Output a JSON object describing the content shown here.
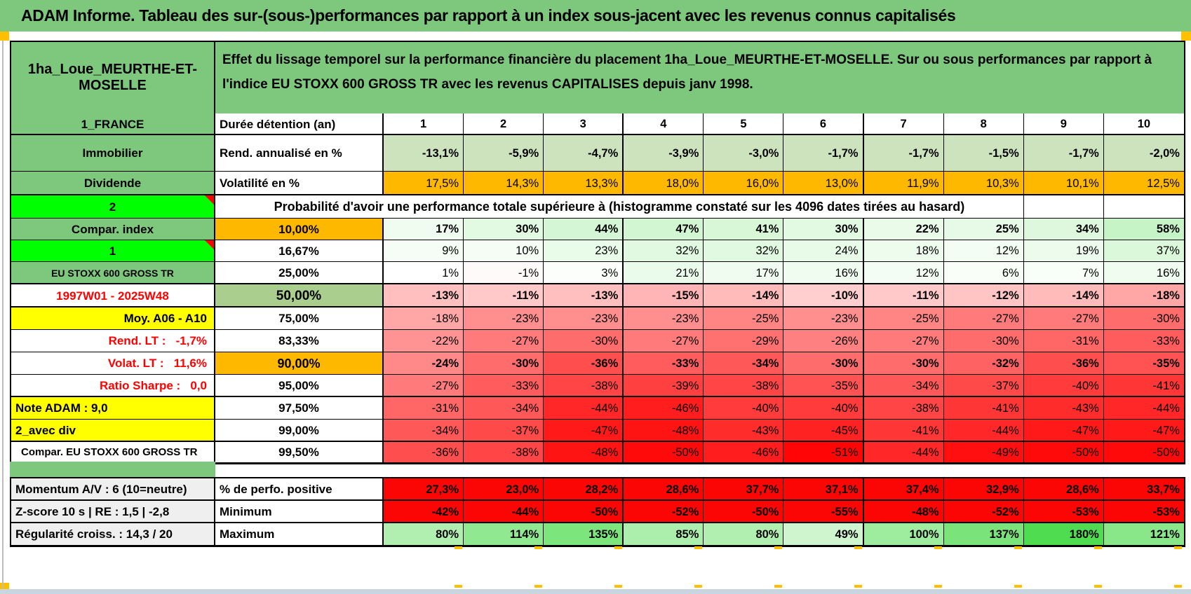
{
  "title": "ADAM Informe. Tableau des sur-(sous-)performances par rapport à un index sous-jacent avec les revenus connus capitalisés",
  "header": {
    "product": "1ha_Loue_MEURTHE-ET-MOSELLE",
    "description": "Effet du lissage temporel sur la performance financière du placement 1ha_Loue_MEURTHE-ET-MOSELLE. Sur ou sous performances par rapport à l'indice EU STOXX 600 GROSS TR avec les revenus CAPITALISES depuis janv 1998."
  },
  "colors": {
    "band_green": "#7EC87E",
    "bright_green": "#00FF00",
    "orange": "#FFB800",
    "yellow": "#FFFF00",
    "sage": "#A9CE8E",
    "rend_green": "#CDE3BE",
    "label_gray": "#EFEFEF",
    "full_red": "#FB0505",
    "marker_orange": "#FFC000",
    "red_text": "#FF0000"
  },
  "table": {
    "rows": [
      {
        "id": "duration",
        "label": {
          "text": "1_FRANCE",
          "bg": "#7EC87E",
          "align": "center"
        },
        "metric": {
          "text": "Durée détention (an)",
          "align": "left"
        },
        "cells": [
          "1",
          "2",
          "3",
          "4",
          "5",
          "6",
          "7",
          "8",
          "9",
          "10"
        ],
        "cellBgAll": "#FFFFFF",
        "bold": true,
        "cellAlign": "center"
      },
      {
        "id": "rend",
        "label": {
          "text": "Immobilier",
          "bg": "#7EC87E",
          "align": "center"
        },
        "metric": {
          "text": "Rend. annualisé en %",
          "align": "left"
        },
        "cells": [
          "-13,1%",
          "-5,9%",
          "-4,7%",
          "-3,9%",
          "-3,0%",
          "-1,7%",
          "-1,7%",
          "-1,5%",
          "-1,7%",
          "-2,0%"
        ],
        "cellBgAll": "#CDE3BE",
        "bold": true
      },
      {
        "id": "volat",
        "label": {
          "text": "Dividende",
          "bg": "#7EC87E",
          "align": "center"
        },
        "metric": {
          "text": "Volatilité en %",
          "align": "left"
        },
        "cells": [
          "17,5%",
          "14,3%",
          "13,3%",
          "18,0%",
          "16,0%",
          "13,0%",
          "11,9%",
          "10,3%",
          "10,1%",
          "12,5%"
        ],
        "cellBgAll": "#FFB800",
        "bold": false
      },
      {
        "id": "prob",
        "label": {
          "text": "2",
          "bg": "#00FF00",
          "align": "center",
          "triangle": true
        },
        "span_text": "Probabilité d'avoir une performance totale supérieure à (histogramme constaté sur les 4096 dates tirées au hasard)",
        "span_cols": 9,
        "trailing_empty": 2
      },
      {
        "id": "p10",
        "label": {
          "text": "Compar. index",
          "bg": "#7EC87E",
          "align": "center"
        },
        "metric": {
          "text": "10,00%",
          "bg": "#FFB800",
          "align": "center"
        },
        "cells": [
          "17%",
          "30%",
          "44%",
          "47%",
          "41%",
          "30%",
          "22%",
          "25%",
          "34%",
          "58%"
        ],
        "cellBg": [
          "#EFFCEF",
          "#E2F9E2",
          "#D4F6D4",
          "#D1F6D1",
          "#D7F7D7",
          "#E2F9E2",
          "#EAFBEA",
          "#E7FAE7",
          "#DEF8DE",
          "#C7F4C7"
        ],
        "bold": true
      },
      {
        "id": "p1667",
        "label": {
          "text": "1",
          "bg": "#00FF00",
          "align": "center",
          "triangle": true
        },
        "metric": {
          "text": "16,67%",
          "align": "center"
        },
        "cells": [
          "9%",
          "10%",
          "23%",
          "32%",
          "32%",
          "24%",
          "18%",
          "12%",
          "19%",
          "37%"
        ],
        "cellBg": [
          "#F6FDF6",
          "#F5FDF5",
          "#E9FBE9",
          "#E0F9E0",
          "#E0F9E0",
          "#E8FAE8",
          "#EEFCEE",
          "#F3FDF3",
          "#EDFBED",
          "#DBF8DB"
        ],
        "bold": false
      },
      {
        "id": "p25",
        "label": {
          "text": "EU STOXX 600 GROSS TR",
          "bg": "#7EC87E",
          "align": "center",
          "fontSize": 14
        },
        "metric": {
          "text": "25,00%",
          "align": "center"
        },
        "cells": [
          "1%",
          "-1%",
          "3%",
          "21%",
          "17%",
          "16%",
          "12%",
          "6%",
          "7%",
          "16%"
        ],
        "cellBg": [
          "#FEFFFE",
          "#FFFAFA",
          "#FCFEFC",
          "#EBFBEB",
          "#EFFCEF",
          "#F0FCF0",
          "#F3FDF3",
          "#F9FEF9",
          "#F8FEF8",
          "#F0FCF0"
        ],
        "bold": false
      },
      {
        "id": "p50",
        "label": {
          "text": "1997W01 - 2025W48",
          "bg": "#FFFFFF",
          "align": "center",
          "color": "#FF0000"
        },
        "metric": {
          "text": "50,00%",
          "bg": "#A9CE8E",
          "align": "center",
          "fontSize": 19
        },
        "cells": [
          "-13%",
          "-11%",
          "-13%",
          "-15%",
          "-14%",
          "-10%",
          "-11%",
          "-12%",
          "-14%",
          "-18%"
        ],
        "cellBg": [
          "#FFBFBF",
          "#FFC9C9",
          "#FFBFBF",
          "#FFB5B5",
          "#FFBABA",
          "#FFCECE",
          "#FFC9C9",
          "#FFC4C4",
          "#FFBABA",
          "#FFA7A7"
        ],
        "bold": true
      },
      {
        "id": "p75",
        "label": {
          "text": "Moy. A06 - A10",
          "bg": "#FFFF00",
          "align": "right"
        },
        "metric": {
          "text": "75,00%",
          "align": "center"
        },
        "cells": [
          "-18%",
          "-23%",
          "-23%",
          "-23%",
          "-25%",
          "-23%",
          "-25%",
          "-27%",
          "-27%",
          "-30%"
        ],
        "cellBg": [
          "#FFA7A7",
          "#FF8E8E",
          "#FF8E8E",
          "#FF8E8E",
          "#FF8484",
          "#FF8E8E",
          "#FF8484",
          "#FF7B7B",
          "#FF7B7B",
          "#FF6C6C"
        ],
        "bold": false
      },
      {
        "id": "p8333",
        "label": {
          "text": "Rend. LT :   -1,7%",
          "bg": "#FFFFFF",
          "align": "right",
          "color": "#FF0000"
        },
        "metric": {
          "text": "83,33%",
          "align": "center"
        },
        "cells": [
          "-22%",
          "-27%",
          "-30%",
          "-27%",
          "-29%",
          "-26%",
          "-27%",
          "-30%",
          "-31%",
          "-33%"
        ],
        "cellBg": [
          "#FF9393",
          "#FF7B7B",
          "#FF6C6C",
          "#FF7B7B",
          "#FF7171",
          "#FF8080",
          "#FF7B7B",
          "#FF6C6C",
          "#FF6767",
          "#FF5D5D"
        ],
        "bold": false
      },
      {
        "id": "p90",
        "label": {
          "text": "Volat. LT :   11,6%",
          "bg": "#FFFFFF",
          "align": "right",
          "color": "#FF0000"
        },
        "metric": {
          "text": "90,00%",
          "bg": "#FFB800",
          "align": "center",
          "fontSize": 18
        },
        "cells": [
          "-24%",
          "-30%",
          "-36%",
          "-33%",
          "-34%",
          "-30%",
          "-30%",
          "-32%",
          "-36%",
          "-35%"
        ],
        "cellBg": [
          "#FF8989",
          "#FF6C6C",
          "#FF4E4E",
          "#FF5D5D",
          "#FF5858",
          "#FF6C6C",
          "#FF6C6C",
          "#FF6262",
          "#FF4E4E",
          "#FF5353"
        ],
        "bold": true
      },
      {
        "id": "p95",
        "label": {
          "text": "Ratio Sharpe :   0,0",
          "bg": "#FFFFFF",
          "align": "right",
          "color": "#FF0000"
        },
        "metric": {
          "text": "95,00%",
          "align": "center"
        },
        "cells": [
          "-27%",
          "-33%",
          "-38%",
          "-39%",
          "-38%",
          "-35%",
          "-34%",
          "-37%",
          "-40%",
          "-41%"
        ],
        "cellBg": [
          "#FF7B7B",
          "#FF5D5D",
          "#FF4545",
          "#FF4040",
          "#FF4545",
          "#FF5353",
          "#FF5858",
          "#FF4A4A",
          "#FF3B3B",
          "#FF3636"
        ],
        "bold": false
      },
      {
        "id": "p975",
        "label": {
          "text": "Note ADAM : 9,0",
          "bg": "#FFFF00",
          "align": "left"
        },
        "metric": {
          "text": "97,50%",
          "align": "center"
        },
        "cells": [
          "-31%",
          "-34%",
          "-44%",
          "-46%",
          "-40%",
          "-40%",
          "-38%",
          "-41%",
          "-43%",
          "-44%"
        ],
        "cellBg": [
          "#FF6767",
          "#FF5858",
          "#FF2727",
          "#FF1D1D",
          "#FF3B3B",
          "#FF3B3B",
          "#FF4545",
          "#FF3636",
          "#FF2C2C",
          "#FF2727"
        ],
        "bold": false
      },
      {
        "id": "p99",
        "label": {
          "text": "2_avec div",
          "bg": "#FFFF00",
          "align": "left"
        },
        "metric": {
          "text": "99,00%",
          "align": "center"
        },
        "cells": [
          "-34%",
          "-37%",
          "-47%",
          "-48%",
          "-43%",
          "-45%",
          "-41%",
          "-44%",
          "-47%",
          "-47%"
        ],
        "cellBg": [
          "#FF5858",
          "#FF4A4A",
          "#FF1919",
          "#FF1414",
          "#FF2C2C",
          "#FF2222",
          "#FF3636",
          "#FF2727",
          "#FF1919",
          "#FF1919"
        ],
        "bold": false
      },
      {
        "id": "p995",
        "label": {
          "text": "Compar. EU STOXX 600 GROSS TR",
          "bg": "#FFFFFF",
          "align": "left",
          "fontSize": 15,
          "indent": 14
        },
        "metric": {
          "text": "99,50%",
          "align": "center"
        },
        "cells": [
          "-36%",
          "-38%",
          "-48%",
          "-50%",
          "-46%",
          "-51%",
          "-44%",
          "-49%",
          "-50%",
          "-50%"
        ],
        "cellBg": [
          "#FF4E4E",
          "#FF4545",
          "#FF1414",
          "#FF0A0A",
          "#FF1D1D",
          "#FF0505",
          "#FF2727",
          "#FF0F0F",
          "#FF0A0A",
          "#FF0A0A"
        ],
        "bold": false
      }
    ],
    "footer_rows": [
      {
        "id": "fpos",
        "label": {
          "text": "Momentum A/V : 6 (10=neutre)",
          "bg": "#EFEFEF",
          "align": "left"
        },
        "metric": {
          "text": "% de perfo. positive",
          "align": "left"
        },
        "cells": [
          "27,3%",
          "23,0%",
          "28,2%",
          "28,6%",
          "37,7%",
          "37,1%",
          "37,4%",
          "32,9%",
          "28,6%",
          "33,7%"
        ],
        "cellBgAll": "#FB0505",
        "bold": true
      },
      {
        "id": "fmin",
        "label": {
          "text": "Z-score 10 s | RE : 1,5 | -2,8",
          "bg": "#EFEFEF",
          "align": "left"
        },
        "metric": {
          "text": "Minimum",
          "align": "left"
        },
        "cells": [
          "-42%",
          "-44%",
          "-50%",
          "-52%",
          "-50%",
          "-55%",
          "-48%",
          "-52%",
          "-53%",
          "-53%"
        ],
        "cellBgAll": "#FB0505",
        "bold": true
      },
      {
        "id": "fmax",
        "label": {
          "text": "Régularité croiss. : 14,3 / 20",
          "bg": "#EFEFEF",
          "align": "left"
        },
        "metric": {
          "text": "Maximum",
          "align": "left"
        },
        "cells": [
          "80%",
          "114%",
          "135%",
          "85%",
          "80%",
          "49%",
          "100%",
          "137%",
          "180%",
          "121%"
        ],
        "cellBg": [
          "#B1EFB1",
          "#90E990",
          "#7CE57C",
          "#ACEEAC",
          "#B1EFB1",
          "#CFF5CF",
          "#9EEC9E",
          "#7AE47A",
          "#50DC50",
          "#89E789"
        ],
        "bold": true
      }
    ]
  }
}
